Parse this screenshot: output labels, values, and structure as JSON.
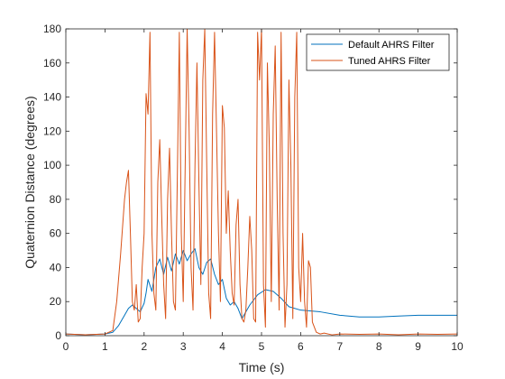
{
  "chart_data": {
    "type": "line",
    "title": "",
    "xlabel": "Time (s)",
    "ylabel": "Quaternion Distance (degrees)",
    "xlim": [
      0,
      10
    ],
    "ylim": [
      0,
      180
    ],
    "xticks": [
      0,
      1,
      2,
      3,
      4,
      5,
      6,
      7,
      8,
      9,
      10
    ],
    "yticks": [
      0,
      20,
      40,
      60,
      80,
      100,
      120,
      140,
      160,
      180
    ],
    "grid": false,
    "legend_position": "top-right",
    "series": [
      {
        "name": "Default AHRS Filter",
        "color": "#0072BD",
        "x": [
          0,
          0.5,
          1.0,
          1.2,
          1.35,
          1.5,
          1.6,
          1.7,
          1.8,
          1.9,
          2.0,
          2.05,
          2.1,
          2.2,
          2.3,
          2.4,
          2.5,
          2.6,
          2.7,
          2.8,
          2.9,
          3.0,
          3.1,
          3.2,
          3.3,
          3.4,
          3.5,
          3.6,
          3.7,
          3.8,
          3.9,
          4.0,
          4.1,
          4.2,
          4.3,
          4.4,
          4.5,
          4.7,
          4.9,
          5.1,
          5.3,
          5.5,
          5.7,
          6.0,
          6.5,
          7.0,
          7.5,
          8.0,
          8.5,
          9.0,
          9.5,
          10.0
        ],
        "values": [
          1,
          0.5,
          1,
          2,
          6,
          12,
          16,
          18,
          16,
          14,
          19,
          25,
          33,
          26,
          40,
          45,
          36,
          46,
          38,
          48,
          42,
          50,
          44,
          48,
          51,
          40,
          36,
          43,
          45,
          36,
          30,
          33,
          22,
          18,
          20,
          16,
          10,
          18,
          24,
          27,
          26,
          22,
          17,
          15,
          14,
          12,
          11,
          11,
          11.5,
          12,
          12,
          12
        ]
      },
      {
        "name": "Tuned AHRS Filter",
        "color": "#D95319",
        "x": [
          0,
          0.5,
          1.0,
          1.2,
          1.3,
          1.4,
          1.5,
          1.55,
          1.6,
          1.65,
          1.7,
          1.75,
          1.8,
          1.85,
          1.9,
          1.95,
          2.0,
          2.05,
          2.1,
          2.15,
          2.2,
          2.25,
          2.3,
          2.35,
          2.4,
          2.45,
          2.5,
          2.55,
          2.6,
          2.65,
          2.7,
          2.75,
          2.8,
          2.85,
          2.9,
          2.95,
          3.0,
          3.05,
          3.1,
          3.15,
          3.2,
          3.25,
          3.3,
          3.35,
          3.4,
          3.45,
          3.5,
          3.55,
          3.6,
          3.65,
          3.7,
          3.75,
          3.8,
          3.85,
          3.9,
          3.95,
          4.0,
          4.05,
          4.1,
          4.15,
          4.2,
          4.25,
          4.3,
          4.35,
          4.4,
          4.45,
          4.5,
          4.55,
          4.6,
          4.65,
          4.7,
          4.75,
          4.8,
          4.85,
          4.9,
          4.95,
          5.0,
          5.05,
          5.1,
          5.15,
          5.2,
          5.25,
          5.3,
          5.35,
          5.4,
          5.45,
          5.5,
          5.55,
          5.6,
          5.65,
          5.7,
          5.75,
          5.8,
          5.85,
          5.9,
          5.95,
          6.0,
          6.05,
          6.1,
          6.15,
          6.2,
          6.25,
          6.3,
          6.4,
          6.5,
          6.6,
          6.8,
          7.0,
          7.5,
          8.0,
          8.5,
          9.0,
          9.5,
          10.0
        ],
        "values": [
          1,
          0.5,
          1,
          3,
          20,
          48,
          80,
          90,
          97,
          60,
          20,
          15,
          30,
          8,
          10,
          40,
          60,
          142,
          130,
          178,
          60,
          25,
          15,
          90,
          115,
          70,
          30,
          10,
          80,
          110,
          60,
          20,
          15,
          95,
          178,
          60,
          20,
          100,
          180,
          120,
          40,
          15,
          100,
          160,
          90,
          30,
          150,
          180,
          100,
          25,
          10,
          130,
          178,
          120,
          60,
          20,
          135,
          122,
          60,
          85,
          50,
          25,
          18,
          65,
          80,
          30,
          10,
          8,
          15,
          40,
          70,
          50,
          10,
          8,
          178,
          150,
          180,
          30,
          5,
          160,
          110,
          20,
          130,
          170,
          80,
          15,
          178,
          60,
          5,
          30,
          150,
          100,
          10,
          140,
          178,
          40,
          20,
          60,
          20,
          5,
          44,
          40,
          8,
          2,
          1,
          1.5,
          0.5,
          1,
          0.8,
          1,
          0.5,
          1,
          0.8,
          1
        ]
      }
    ]
  }
}
